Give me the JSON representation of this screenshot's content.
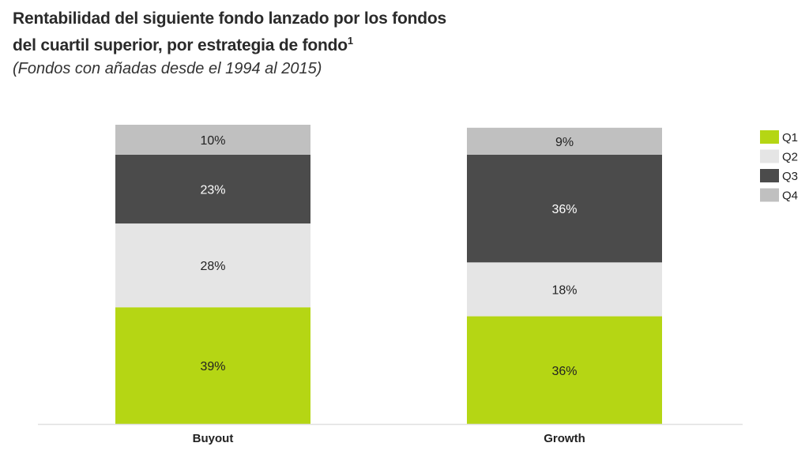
{
  "chart_data": {
    "type": "bar",
    "stacked": true,
    "title_line1": "Rentabilidad del siguiente fondo lanzado por los fondos",
    "title_line2": "del cuartil superior, por estrategia de fondo",
    "title_footnote": "1",
    "subtitle": "(Fondos con añadas desde el 1994 al 2015)",
    "xlabel": "",
    "ylabel": "",
    "ylim": [
      0,
      100
    ],
    "grid": false,
    "legend_position": "right",
    "categories": [
      "Buyout",
      "Growth"
    ],
    "series": [
      {
        "name": "Q1",
        "color": "#b5d614",
        "label_color": "#222222",
        "values": [
          39,
          36
        ]
      },
      {
        "name": "Q2",
        "color": "#e5e5e5",
        "label_color": "#222222",
        "values": [
          28,
          18
        ]
      },
      {
        "name": "Q3",
        "color": "#4b4b4b",
        "label_color": "#ffffff",
        "values": [
          23,
          36
        ]
      },
      {
        "name": "Q4",
        "color": "#c0c0c0",
        "label_color": "#222222",
        "values": [
          10,
          9
        ]
      }
    ],
    "value_suffix": "%"
  }
}
